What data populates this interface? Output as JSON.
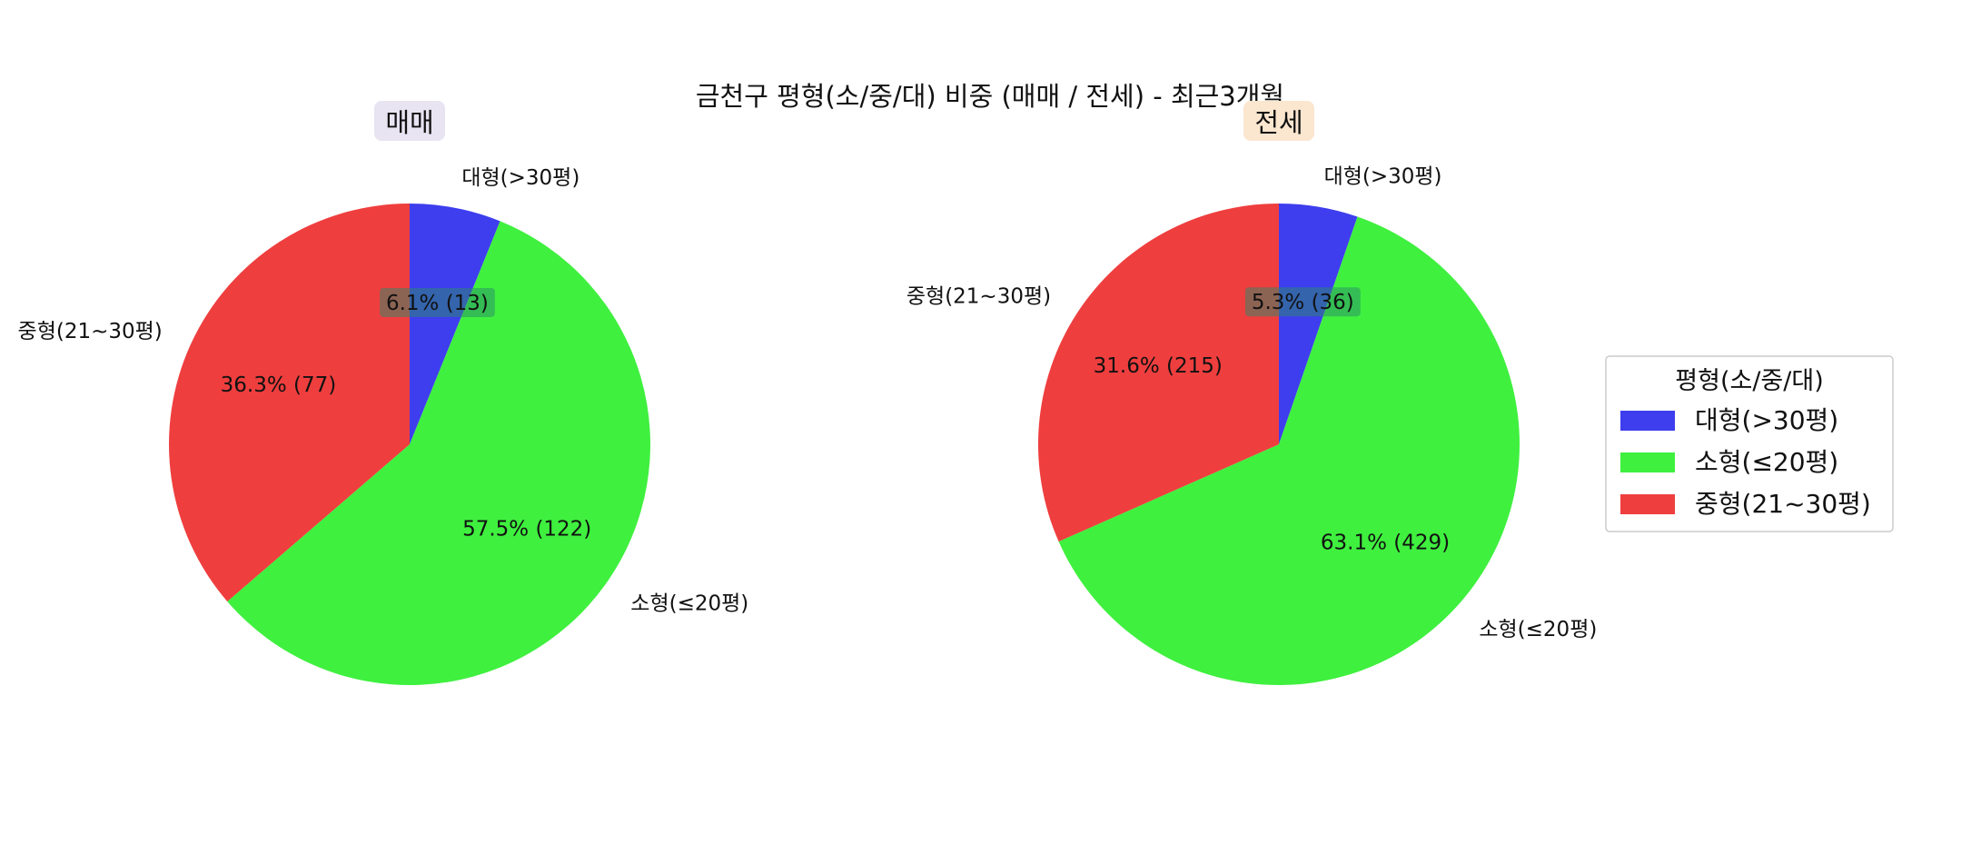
{
  "figure": {
    "title": "금천구 평형(소/중/대) 비중 (매매 / 전세) - 최근3개월"
  },
  "colors": {
    "대형(>30평)": "#3e3eee",
    "소형(≤20평)": "#3ff03f",
    "중형(21~30평)": "#ef3e3e",
    "매매_badge": "#e8e4f2",
    "전세_badge": "#fbe6cf"
  },
  "legend": {
    "title": "평형(소/중/대)",
    "entries": [
      "대형(>30평)",
      "소형(≤20평)",
      "중형(21~30평)"
    ],
    "placement": "center-right"
  },
  "chart_data": [
    {
      "type": "pie",
      "title": "매매",
      "labels": [
        "대형(>30평)",
        "소형(≤20평)",
        "중형(21~30평)"
      ],
      "values": [
        13,
        122,
        77
      ],
      "percent_labels": [
        "6.1% (13)",
        "57.5% (122)",
        "36.3% (77)"
      ],
      "start_angle": 90,
      "direction": "clockwise"
    },
    {
      "type": "pie",
      "title": "전세",
      "labels": [
        "대형(>30평)",
        "소형(≤20평)",
        "중형(21~30평)"
      ],
      "values": [
        36,
        429,
        215
      ],
      "percent_labels": [
        "5.3% (36)",
        "63.1% (429)",
        "31.6% (215)"
      ],
      "start_angle": 90,
      "direction": "clockwise"
    }
  ]
}
